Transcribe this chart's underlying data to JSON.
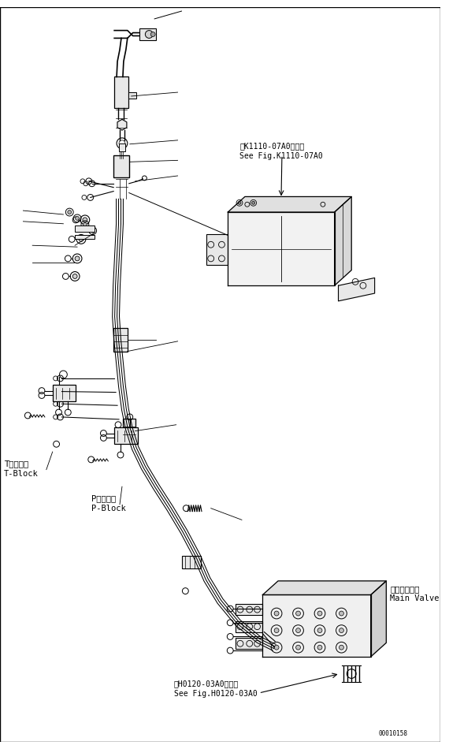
{
  "bg_color": "#ffffff",
  "line_color": "#000000",
  "fig_number": "00010158",
  "labels": {
    "t_block_jp": "Tブロック",
    "t_block_en": "T-Block",
    "p_block_jp": "Pブロック",
    "p_block_en": "P-Block",
    "main_valve_jp": "メインバルブ",
    "main_valve_en": "Main Valve",
    "ref1_jp": "第K1110-07A0図参照",
    "ref1_en": "See Fig.K1110-07A0",
    "ref2_jp": "第H0120-03A0図参照",
    "ref2_en": "See Fig.H0120-03A0"
  },
  "font_size_label": 7.5,
  "font_size_fig": 7.0
}
